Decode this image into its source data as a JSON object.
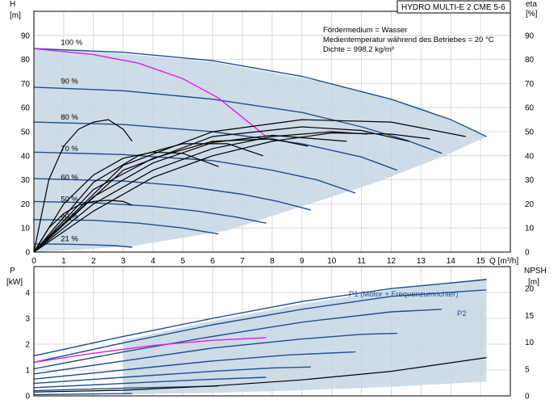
{
  "chart_data": [
    {
      "type": "line",
      "name_ref": "head-chart",
      "title_box": "HYDRO MULTI-E 2 CME 5-6",
      "ylabel_left": "H",
      "ylabel_left_unit": "[m]",
      "ylabel_right": "eta",
      "ylabel_right_unit": "[%]",
      "xlabel": "Q [m³/h]",
      "xlim": [
        0,
        16
      ],
      "ylim": [
        0,
        100
      ],
      "x_ticks": [
        0,
        1,
        2,
        3,
        4,
        5,
        6,
        7,
        8,
        9,
        10,
        11,
        12,
        13,
        14,
        15
      ],
      "y_ticks": [
        0,
        10,
        20,
        30,
        40,
        50,
        60,
        70,
        80,
        90
      ],
      "y_right_ticks": [
        0,
        10,
        20,
        30,
        40,
        50,
        60,
        70,
        80,
        90
      ],
      "grid": true,
      "annotations": [
        "Fördermedium = Wasser",
        "Medientemperatur während des Betriebes = 20 °C",
        "Dichte = 998.2 kg/m³"
      ],
      "speed_labels": [
        {
          "label": "100 %",
          "x": 0.9,
          "y": 86
        },
        {
          "label": "90 %",
          "x": 0.9,
          "y": 70
        },
        {
          "label": "80 %",
          "x": 0.9,
          "y": 55
        },
        {
          "label": "70 %",
          "x": 0.9,
          "y": 42
        },
        {
          "label": "60 %",
          "x": 0.9,
          "y": 30
        },
        {
          "label": "50 %",
          "x": 0.9,
          "y": 21
        },
        {
          "label": "40 %",
          "x": 0.9,
          "y": 14
        },
        {
          "label": "21 %",
          "x": 0.9,
          "y": 4.5
        }
      ],
      "operating_area": {
        "x": [
          0,
          1.5,
          6,
          10,
          13,
          15.2,
          13.8,
          11.5,
          9,
          6.5,
          3.3,
          1.5,
          0
        ],
        "y": [
          85,
          84,
          79,
          70,
          60,
          48,
          40,
          29,
          19,
          9,
          2.5,
          1,
          0
        ]
      },
      "series": [
        {
          "color": "#1f4e8c",
          "x": [
            0,
            3,
            6,
            9,
            12,
            14,
            15.2
          ],
          "y": [
            84.5,
            83,
            79.5,
            73,
            63.5,
            55,
            48
          ]
        },
        {
          "color": "#1f4e8c",
          "x": [
            0,
            3,
            6,
            9,
            11,
            12.5,
            13.7
          ],
          "y": [
            68.5,
            67,
            63.5,
            58,
            52,
            46.5,
            41
          ]
        },
        {
          "color": "#1f4e8c",
          "x": [
            0,
            3,
            6,
            9,
            11,
            12.2
          ],
          "y": [
            54,
            53,
            50,
            45,
            39.5,
            34
          ]
        },
        {
          "color": "#1f4e8c",
          "x": [
            0,
            3,
            6,
            8,
            9.5,
            10.8
          ],
          "y": [
            41.5,
            40.5,
            38,
            34,
            30,
            24.5
          ]
        },
        {
          "color": "#1f4e8c",
          "x": [
            0,
            3,
            5,
            7,
            8.2,
            9.3
          ],
          "y": [
            30.5,
            29.5,
            27.5,
            24,
            21,
            17.5
          ]
        },
        {
          "color": "#1f4e8c",
          "x": [
            0,
            2,
            4,
            5.5,
            6.8,
            7.8
          ],
          "y": [
            21,
            20.5,
            19,
            17,
            14.5,
            12
          ]
        },
        {
          "color": "#1f4e8c",
          "x": [
            0,
            2,
            3.5,
            5,
            6.2
          ],
          "y": [
            13.5,
            13.2,
            12,
            10,
            7.5
          ]
        },
        {
          "color": "#1f4e8c",
          "x": [
            0,
            1,
            2,
            2.7,
            3.3
          ],
          "y": [
            3.4,
            3.3,
            3,
            2.7,
            2
          ]
        },
        {
          "color": "#e020e0",
          "x": [
            0,
            2,
            3.5,
            5,
            6.2,
            7.2,
            7.8
          ],
          "y": [
            84.5,
            82,
            78.5,
            72,
            64,
            54,
            48
          ]
        },
        {
          "color": "#000000",
          "x": [
            0,
            2,
            4,
            6,
            8,
            10,
            11.2
          ],
          "y": [
            0,
            20,
            34,
            43,
            48,
            50,
            49
          ]
        },
        {
          "color": "#000000",
          "x": [
            0,
            2,
            4,
            6,
            8,
            10,
            12,
            13.3
          ],
          "y": [
            0,
            17,
            31,
            40,
            46,
            49.5,
            49,
            47
          ]
        },
        {
          "color": "#000000",
          "x": [
            0,
            2,
            4,
            6,
            8,
            10.5
          ],
          "y": [
            0,
            23,
            37,
            45.5,
            48.5,
            46
          ]
        },
        {
          "color": "#000000",
          "x": [
            0,
            2,
            4,
            6,
            8,
            9.2
          ],
          "y": [
            0,
            26,
            39,
            46,
            47,
            44
          ]
        },
        {
          "color": "#000000",
          "x": [
            0,
            2,
            3.5,
            5,
            6.5,
            7.7
          ],
          "y": [
            0,
            29,
            40,
            45,
            45,
            40
          ]
        },
        {
          "color": "#000000",
          "x": [
            0,
            1,
            2,
            3,
            4,
            5,
            6.2
          ],
          "y": [
            0,
            20,
            32,
            39,
            41.5,
            41,
            35.5
          ]
        },
        {
          "color": "#000000",
          "x": [
            0,
            0.5,
            1,
            1.5,
            2,
            2.5,
            3,
            3.3
          ],
          "y": [
            0,
            30,
            44,
            51,
            54,
            55,
            51,
            46
          ]
        },
        {
          "color": "#000000",
          "x": [
            0,
            0.5,
            1,
            1.5,
            2,
            2.5,
            3,
            3.3
          ],
          "y": [
            0,
            10,
            16,
            19.5,
            21,
            21.5,
            21,
            19.5
          ]
        },
        {
          "color": "#000000",
          "x": [
            0,
            3,
            6,
            9,
            12,
            14.5
          ],
          "y": [
            0,
            36,
            50,
            55,
            54,
            48
          ]
        },
        {
          "color": "#000000",
          "x": [
            0,
            3,
            6,
            9,
            11,
            12.6
          ],
          "y": [
            0,
            34,
            48,
            52,
            50.5,
            46
          ]
        }
      ]
    },
    {
      "type": "line",
      "name_ref": "power-chart",
      "ylabel_left": "P",
      "ylabel_left_unit": "[kW]",
      "ylabel_right": "NPSH",
      "ylabel_right_unit": "[m]",
      "xlim": [
        0,
        16
      ],
      "ylim": [
        0,
        5
      ],
      "y_ticks": [
        0,
        1,
        2,
        3,
        4
      ],
      "y_right_ticks": [
        0,
        5,
        10,
        15,
        20
      ],
      "grid": true,
      "legend_labels": [
        "P1 (Motor + Frequenzumrichter)",
        "P2"
      ],
      "operating_area": {
        "x": [
          3,
          6,
          9,
          12,
          15.2,
          15.2,
          12,
          9,
          6,
          3
        ],
        "y": [
          2.15,
          2.9,
          3.55,
          4.1,
          4.55,
          0.55,
          0.35,
          0.22,
          0.12,
          0.05
        ]
      },
      "series": [
        {
          "color": "#1f4e8c",
          "x": [
            0,
            3,
            6,
            9,
            12,
            15.2
          ],
          "y": [
            1.55,
            2.3,
            3.0,
            3.65,
            4.15,
            4.5
          ]
        },
        {
          "color": "#1f4e8c",
          "x": [
            0,
            3,
            6,
            9,
            12,
            15.2
          ],
          "y": [
            1.3,
            2.05,
            2.75,
            3.35,
            3.85,
            4.1
          ]
        },
        {
          "color": "#1f4e8c",
          "x": [
            0,
            3,
            6,
            9,
            12,
            13.7
          ],
          "y": [
            1.05,
            1.7,
            2.3,
            2.85,
            3.25,
            3.35
          ]
        },
        {
          "color": "#1f4e8c",
          "x": [
            0,
            3,
            6,
            9,
            11,
            12.2
          ],
          "y": [
            0.85,
            1.35,
            1.85,
            2.2,
            2.38,
            2.42
          ]
        },
        {
          "color": "#1f4e8c",
          "x": [
            0,
            3,
            6,
            8.5,
            10.8
          ],
          "y": [
            0.65,
            1.0,
            1.35,
            1.58,
            1.7
          ]
        },
        {
          "color": "#1f4e8c",
          "x": [
            0,
            3,
            6,
            8,
            9.3
          ],
          "y": [
            0.48,
            0.72,
            0.95,
            1.08,
            1.12
          ]
        },
        {
          "color": "#1f4e8c",
          "x": [
            0,
            3,
            5.5,
            7.8
          ],
          "y": [
            0.32,
            0.48,
            0.62,
            0.72
          ]
        },
        {
          "color": "#1f4e8c",
          "x": [
            0,
            3,
            6.2
          ],
          "y": [
            0.2,
            0.3,
            0.38
          ]
        },
        {
          "color": "#1f4e8c",
          "x": [
            0,
            1.5,
            3.3
          ],
          "y": [
            0.05,
            0.07,
            0.09
          ]
        },
        {
          "color": "#e020e0",
          "x": [
            0,
            2,
            4,
            6,
            7.8
          ],
          "y": [
            1.3,
            1.65,
            1.95,
            2.15,
            2.25
          ]
        },
        {
          "color": "#000000",
          "x": [
            0,
            3,
            6,
            9,
            12,
            15.2
          ],
          "y": [
            0.15,
            0.22,
            0.38,
            0.62,
            0.95,
            1.48
          ]
        }
      ]
    }
  ]
}
